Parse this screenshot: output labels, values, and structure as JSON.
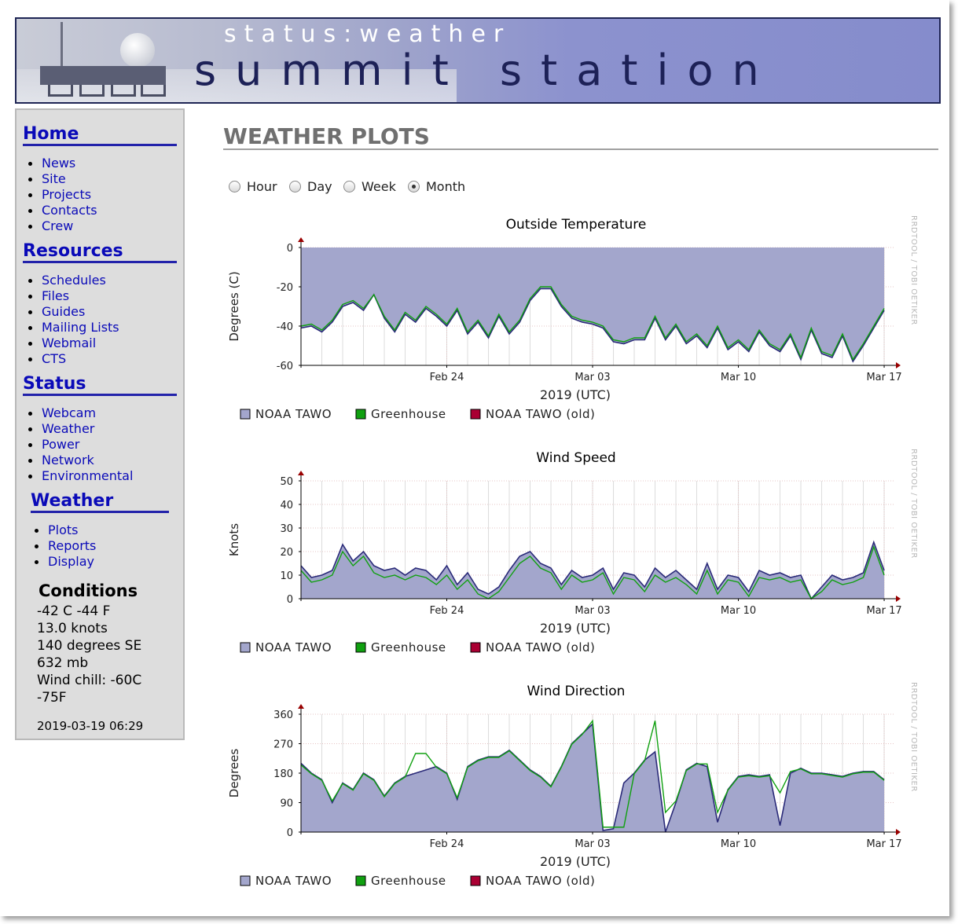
{
  "header": {
    "subtitle": "status:weather",
    "title": "summit station"
  },
  "sidebar": {
    "sections": [
      {
        "heading": "Home",
        "items": [
          "News",
          "Site",
          "Projects",
          "Contacts",
          "Crew"
        ]
      },
      {
        "heading": "Resources",
        "items": [
          "Schedules",
          "Files",
          "Guides",
          "Mailing Lists",
          "Webmail",
          "CTS"
        ]
      },
      {
        "heading": "Status",
        "items": [
          "Webcam",
          "Weather",
          "Power",
          "Network",
          "Environmental"
        ]
      },
      {
        "heading": "Weather",
        "items": [
          "Plots",
          "Reports",
          "Display"
        ]
      }
    ],
    "conditions": {
      "title": "Conditions",
      "temperature": "-42 C -44 F",
      "wind_speed": "13.0 knots",
      "wind_direction": "140 degrees SE",
      "pressure": "632 mb",
      "wind_chill_1": "Wind chill: -60C",
      "wind_chill_2": "-75F",
      "timestamp": "2019-03-19 06:29"
    }
  },
  "main": {
    "title": "WEATHER PLOTS",
    "ranges": [
      {
        "label": "Hour",
        "selected": false
      },
      {
        "label": "Day",
        "selected": false
      },
      {
        "label": "Week",
        "selected": false
      },
      {
        "label": "Month",
        "selected": true
      }
    ]
  },
  "colors": {
    "noaa_fill": "#a3a6cc",
    "noaa_line": "#2a2a78",
    "greenhouse": "#10a010",
    "old": "#aa0033",
    "axis_arrow": "#990000"
  },
  "chart_data": [
    {
      "type": "area",
      "title": "Outside Temperature",
      "ylabel": "Degrees (C)",
      "xlabel": "2019 (UTC)",
      "watermark": "RRDTOOL / TOBI OETIKER",
      "x_ticks": [
        "Feb 24",
        "Mar 03",
        "Mar 10",
        "Mar 17"
      ],
      "x_tick_days": [
        7,
        14,
        21,
        28
      ],
      "x_range_days": [
        0,
        28.3
      ],
      "y_ticks": [
        "0",
        "-20",
        "-40",
        "-60"
      ],
      "y_tick_values": [
        0,
        -20,
        -40,
        -60
      ],
      "ylim": [
        -60,
        0
      ],
      "fill_to": "top",
      "legend": [
        "NOAA TAWO",
        "Greenhouse",
        "NOAA TAWO (old)"
      ],
      "series": [
        {
          "name": "NOAA TAWO",
          "x": [
            0,
            0.5,
            1,
            1.5,
            2,
            2.5,
            3,
            3.5,
            4,
            4.5,
            5,
            5.5,
            6,
            6.5,
            7,
            7.5,
            8,
            8.5,
            9,
            9.5,
            10,
            10.5,
            11,
            11.5,
            12,
            12.5,
            13,
            13.5,
            14,
            14.5,
            15,
            15.5,
            16,
            16.5,
            17,
            17.5,
            18,
            18.5,
            19,
            19.5,
            20,
            20.5,
            21,
            21.5,
            22,
            22.5,
            23,
            23.5,
            24,
            24.5,
            25,
            25.5,
            26,
            26.5,
            27,
            27.5,
            28
          ],
          "values": [
            -41,
            -40,
            -43,
            -38,
            -30,
            -28,
            -32,
            -24,
            -36,
            -43,
            -34,
            -38,
            -31,
            -35,
            -40,
            -32,
            -44,
            -38,
            -46,
            -35,
            -44,
            -38,
            -27,
            -21,
            -21,
            -30,
            -36,
            -38,
            -39,
            -41,
            -48,
            -49,
            -47,
            -47,
            -36,
            -47,
            -40,
            -49,
            -45,
            -51,
            -41,
            -52,
            -48,
            -53,
            -43,
            -50,
            -53,
            -45,
            -57,
            -42,
            -54,
            -56,
            -45,
            -58,
            -50,
            -41,
            -32
          ]
        },
        {
          "name": "Greenhouse",
          "x": [
            0,
            0.5,
            1,
            1.5,
            2,
            2.5,
            3,
            3.5,
            4,
            4.5,
            5,
            5.5,
            6,
            6.5,
            7,
            7.5,
            8,
            8.5,
            9,
            9.5,
            10,
            10.5,
            11,
            11.5,
            12,
            12.5,
            13,
            13.5,
            14,
            14.5,
            15,
            15.5,
            16,
            16.5,
            17,
            17.5,
            18,
            18.5,
            19,
            19.5,
            20,
            20.5,
            21,
            21.5,
            22,
            22.5,
            23,
            23.5,
            24,
            24.5,
            25,
            25.5,
            26,
            26.5,
            27,
            27.5,
            28
          ],
          "values": [
            -40,
            -39,
            -42,
            -37,
            -29,
            -27,
            -31,
            -24,
            -35,
            -42,
            -33,
            -37,
            -30,
            -34,
            -39,
            -31,
            -43,
            -37,
            -45,
            -34,
            -43,
            -37,
            -26,
            -20,
            -20,
            -29,
            -35,
            -37,
            -38,
            -40,
            -47,
            -48,
            -46,
            -46,
            -35,
            -46,
            -39,
            -48,
            -44,
            -50,
            -40,
            -51,
            -47,
            -52,
            -42,
            -49,
            -52,
            -44,
            -56,
            -41,
            -53,
            -55,
            -44,
            -57,
            -49,
            -40,
            -31
          ]
        }
      ]
    },
    {
      "type": "area",
      "title": "Wind Speed",
      "ylabel": "Knots",
      "xlabel": "2019 (UTC)",
      "watermark": "RRDTOOL / TOBI OETIKER",
      "x_ticks": [
        "Feb 24",
        "Mar 03",
        "Mar 10",
        "Mar 17"
      ],
      "x_tick_days": [
        7,
        14,
        21,
        28
      ],
      "x_range_days": [
        0,
        28.3
      ],
      "y_ticks": [
        "50",
        "40",
        "30",
        "20",
        "10",
        "0"
      ],
      "y_tick_values": [
        50,
        40,
        30,
        20,
        10,
        0
      ],
      "ylim": [
        0,
        50
      ],
      "fill_to": "zero",
      "legend": [
        "NOAA TAWO",
        "Greenhouse",
        "NOAA TAWO (old)"
      ],
      "series": [
        {
          "name": "NOAA TAWO",
          "x": [
            0,
            0.5,
            1,
            1.5,
            2,
            2.5,
            3,
            3.5,
            4,
            4.5,
            5,
            5.5,
            6,
            6.5,
            7,
            7.5,
            8,
            8.5,
            9,
            9.5,
            10,
            10.5,
            11,
            11.5,
            12,
            12.5,
            13,
            13.5,
            14,
            14.5,
            15,
            15.5,
            16,
            16.5,
            17,
            17.5,
            18,
            18.5,
            19,
            19.5,
            20,
            20.5,
            21,
            21.5,
            22,
            22.5,
            23,
            23.5,
            24,
            24.5,
            25,
            25.5,
            26,
            26.5,
            27,
            27.5,
            28
          ],
          "values": [
            14,
            9,
            10,
            12,
            23,
            16,
            20,
            14,
            12,
            13,
            10,
            13,
            12,
            8,
            14,
            6,
            11,
            4,
            2,
            5,
            12,
            18,
            20,
            15,
            13,
            6,
            12,
            9,
            10,
            13,
            4,
            11,
            10,
            5,
            13,
            9,
            12,
            8,
            4,
            15,
            4,
            10,
            9,
            3,
            12,
            10,
            11,
            9,
            10,
            0,
            5,
            10,
            8,
            9,
            11,
            24,
            12
          ]
        },
        {
          "name": "Greenhouse",
          "x": [
            0,
            0.5,
            1,
            1.5,
            2,
            2.5,
            3,
            3.5,
            4,
            4.5,
            5,
            5.5,
            6,
            6.5,
            7,
            7.5,
            8,
            8.5,
            9,
            9.5,
            10,
            10.5,
            11,
            11.5,
            12,
            12.5,
            13,
            13.5,
            14,
            14.5,
            15,
            15.5,
            16,
            16.5,
            17,
            17.5,
            18,
            18.5,
            19,
            19.5,
            20,
            20.5,
            21,
            21.5,
            22,
            22.5,
            23,
            23.5,
            24,
            24.5,
            25,
            25.5,
            26,
            26.5,
            27,
            27.5,
            28
          ],
          "values": [
            12,
            7,
            8,
            10,
            20,
            14,
            18,
            11,
            9,
            10,
            8,
            10,
            9,
            6,
            10,
            4,
            8,
            2,
            0,
            3,
            9,
            15,
            18,
            13,
            11,
            4,
            10,
            7,
            8,
            11,
            2,
            9,
            8,
            3,
            10,
            7,
            9,
            6,
            2,
            12,
            2,
            8,
            7,
            1,
            9,
            8,
            9,
            7,
            8,
            0,
            3,
            8,
            6,
            7,
            9,
            22,
            10
          ]
        }
      ]
    },
    {
      "type": "area",
      "title": "Wind Direction",
      "ylabel": "Degrees",
      "xlabel": "2019 (UTC)",
      "watermark": "RRDTOOL / TOBI OETIKER",
      "x_ticks": [
        "Feb 24",
        "Mar 03",
        "Mar 10",
        "Mar 17"
      ],
      "x_tick_days": [
        7,
        14,
        21,
        28
      ],
      "x_range_days": [
        0,
        28.3
      ],
      "y_ticks": [
        "360",
        "270",
        "180",
        "90",
        "0"
      ],
      "y_tick_values": [
        360,
        270,
        180,
        90,
        0
      ],
      "ylim": [
        0,
        360
      ],
      "fill_to": "zero",
      "legend": [
        "NOAA TAWO",
        "Greenhouse",
        "NOAA TAWO (old)"
      ],
      "series": [
        {
          "name": "NOAA TAWO",
          "x": [
            0,
            0.5,
            1,
            1.5,
            2,
            2.5,
            3,
            3.5,
            4,
            4.5,
            5,
            5.5,
            6,
            6.5,
            7,
            7.5,
            8,
            8.5,
            9,
            9.5,
            10,
            10.5,
            11,
            11.5,
            12,
            12.5,
            13,
            13.5,
            14,
            14.5,
            15,
            15.5,
            16,
            16.5,
            17,
            17.5,
            18,
            18.5,
            19,
            19.5,
            20,
            20.5,
            21,
            21.5,
            22,
            22.5,
            23,
            23.5,
            24,
            24.5,
            25,
            25.5,
            26,
            26.5,
            27,
            27.5,
            28
          ],
          "values": [
            210,
            180,
            160,
            90,
            150,
            130,
            180,
            160,
            110,
            150,
            170,
            180,
            190,
            200,
            180,
            100,
            200,
            220,
            230,
            230,
            250,
            220,
            190,
            170,
            140,
            200,
            270,
            300,
            330,
            5,
            10,
            150,
            180,
            220,
            245,
            0,
            90,
            190,
            210,
            200,
            30,
            130,
            170,
            175,
            170,
            175,
            20,
            180,
            195,
            180,
            180,
            175,
            170,
            180,
            185,
            185,
            160
          ]
        },
        {
          "name": "Greenhouse",
          "x": [
            0,
            0.5,
            1,
            1.5,
            2,
            2.5,
            3,
            3.5,
            4,
            4.5,
            5,
            5.5,
            6,
            6.5,
            7,
            7.5,
            8,
            8.5,
            9,
            9.5,
            10,
            10.5,
            11,
            11.5,
            12,
            12.5,
            13,
            13.5,
            14,
            14.5,
            15,
            15.5,
            16,
            16.5,
            17,
            17.5,
            18,
            18.5,
            19,
            19.5,
            20,
            20.5,
            21,
            21.5,
            22,
            22.5,
            23,
            23.5,
            24,
            24.5,
            25,
            25.5,
            26,
            26.5,
            27,
            27.5,
            28
          ],
          "values": [
            205,
            178,
            158,
            95,
            148,
            128,
            178,
            158,
            108,
            148,
            168,
            240,
            240,
            198,
            178,
            105,
            198,
            218,
            228,
            228,
            248,
            218,
            188,
            168,
            138,
            198,
            268,
            298,
            340,
            15,
            15,
            15,
            178,
            218,
            340,
            60,
            95,
            188,
            208,
            208,
            60,
            128,
            168,
            172,
            168,
            172,
            120,
            185,
            193,
            178,
            178,
            173,
            168,
            178,
            183,
            183,
            158
          ]
        }
      ]
    }
  ]
}
